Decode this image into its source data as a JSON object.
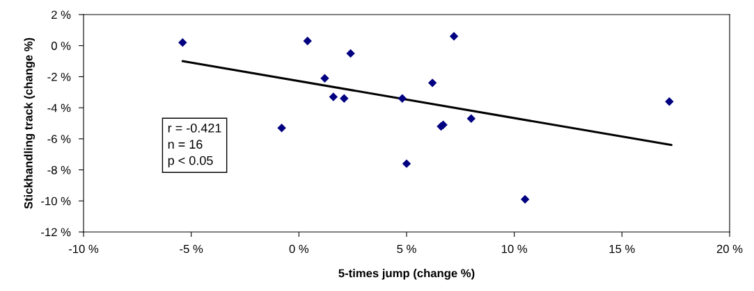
{
  "chart_data": {
    "type": "scatter",
    "xlabel": "5-times jump (change %)",
    "ylabel": "Stickhandling track (change %)",
    "xlim": [
      -10,
      20
    ],
    "xticks": [
      {
        "value": -10,
        "label": "-10 %"
      },
      {
        "value": -5,
        "label": "-5 %"
      },
      {
        "value": 0,
        "label": "0 %"
      },
      {
        "value": 5,
        "label": "5 %"
      },
      {
        "value": 10,
        "label": "10 %"
      },
      {
        "value": 15,
        "label": "15 %"
      },
      {
        "value": 20,
        "label": "20 %"
      }
    ],
    "ylim": [
      -12,
      2
    ],
    "yticks": [
      {
        "value": -12,
        "label": "-12 %"
      },
      {
        "value": -10,
        "label": "-10 %"
      },
      {
        "value": -8,
        "label": "-8 %"
      },
      {
        "value": -6,
        "label": "-6 %"
      },
      {
        "value": -4,
        "label": "-4 %"
      },
      {
        "value": -2,
        "label": "-2 %"
      },
      {
        "value": 0,
        "label": "0 %"
      },
      {
        "value": 2,
        "label": "2 %"
      }
    ],
    "grid": false,
    "marker": "diamond",
    "series": [
      {
        "color": "#000080",
        "x": [
          -5.4,
          0.4,
          2.4,
          1.2,
          1.6,
          2.1,
          4.8,
          -0.8,
          5.0,
          7.2,
          6.2,
          6.6,
          6.7,
          8.0,
          10.5,
          17.2
        ],
        "values": [
          0.2,
          0.3,
          -0.5,
          -2.1,
          -3.3,
          -3.4,
          -3.4,
          -5.3,
          -7.6,
          0.6,
          -2.4,
          -5.2,
          -5.1,
          -4.7,
          -9.9,
          -3.6
        ]
      },
      {
        "type": "line",
        "color": "#000000",
        "marker": "none",
        "x": [
          -5.4,
          17.3
        ],
        "values": [
          -1.0,
          -6.4
        ]
      }
    ],
    "annotations": [
      "r = -0.421\nn = 16\np < 0.05"
    ]
  }
}
